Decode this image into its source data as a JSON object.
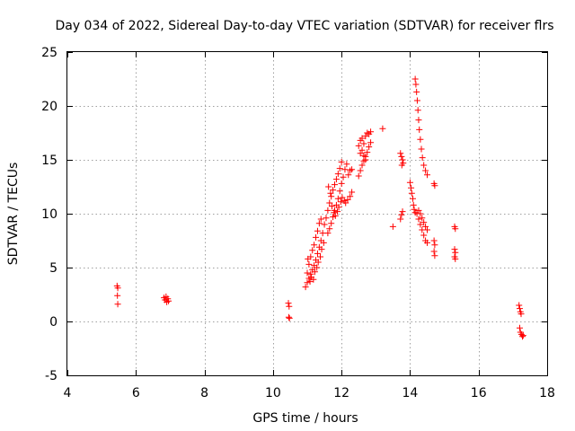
{
  "chart_data": {
    "type": "scatter",
    "title": "Day 034 of 2022, Sidereal Day-to-day VTEC variation (SDTVAR) for receiver flrs",
    "xlabel": "GPS time / hours",
    "ylabel": "SDTVAR / TECUs",
    "xlim": [
      4,
      18
    ],
    "ylim": [
      -5,
      25
    ],
    "xticks": [
      4,
      6,
      8,
      10,
      12,
      14,
      16,
      18
    ],
    "yticks": [
      -5,
      0,
      5,
      10,
      15,
      20,
      25
    ],
    "xtick_labels": [
      "4",
      "6",
      "8",
      "10",
      "12",
      "14",
      "16",
      "18"
    ],
    "ytick_labels": [
      "-5",
      "0",
      "5",
      "10",
      "15",
      "20",
      "25"
    ],
    "grid": true,
    "marker": "+",
    "marker_color": "#ff0000",
    "series": [
      {
        "name": "SDTVAR",
        "points": [
          [
            5.45,
            3.3
          ],
          [
            5.47,
            3.1
          ],
          [
            5.46,
            2.4
          ],
          [
            5.47,
            1.6
          ],
          [
            6.82,
            2.2
          ],
          [
            6.85,
            2.0
          ],
          [
            6.88,
            2.3
          ],
          [
            6.9,
            1.8
          ],
          [
            6.93,
            2.1
          ],
          [
            6.95,
            1.9
          ],
          [
            10.45,
            1.7
          ],
          [
            10.47,
            1.4
          ],
          [
            10.46,
            0.4
          ],
          [
            10.48,
            0.3
          ],
          [
            10.95,
            3.2
          ],
          [
            11.0,
            3.6
          ],
          [
            11.05,
            4.0
          ],
          [
            11.1,
            4.4
          ],
          [
            11.15,
            4.8
          ],
          [
            11.2,
            5.2
          ],
          [
            11.25,
            5.7
          ],
          [
            11.3,
            6.3
          ],
          [
            11.35,
            6.9
          ],
          [
            11.4,
            7.5
          ],
          [
            11.45,
            8.2
          ],
          [
            11.5,
            9.0
          ],
          [
            11.55,
            9.6
          ],
          [
            11.0,
            4.5
          ],
          [
            11.05,
            5.3
          ],
          [
            11.1,
            6.0
          ],
          [
            11.15,
            6.6
          ],
          [
            11.2,
            7.1
          ],
          [
            11.25,
            7.8
          ],
          [
            11.3,
            8.4
          ],
          [
            11.35,
            9.1
          ],
          [
            11.4,
            9.5
          ],
          [
            11.02,
            5.8
          ],
          [
            11.08,
            3.7
          ],
          [
            11.12,
            4.1
          ],
          [
            11.18,
            3.9
          ],
          [
            11.22,
            4.6
          ],
          [
            11.28,
            5.0
          ],
          [
            11.32,
            5.5
          ],
          [
            11.38,
            6.0
          ],
          [
            11.42,
            6.7
          ],
          [
            11.48,
            7.3
          ],
          [
            11.6,
            8.2
          ],
          [
            11.65,
            8.6
          ],
          [
            11.7,
            9.1
          ],
          [
            11.75,
            9.7
          ],
          [
            11.8,
            10.3
          ],
          [
            11.85,
            10.8
          ],
          [
            11.9,
            11.4
          ],
          [
            11.95,
            12.1
          ],
          [
            12.0,
            12.8
          ],
          [
            12.05,
            13.4
          ],
          [
            12.1,
            14.1
          ],
          [
            12.15,
            14.6
          ],
          [
            11.6,
            10.3
          ],
          [
            11.65,
            11.0
          ],
          [
            11.7,
            11.6
          ],
          [
            11.75,
            12.2
          ],
          [
            11.8,
            12.7
          ],
          [
            11.85,
            13.2
          ],
          [
            11.9,
            13.7
          ],
          [
            11.95,
            14.2
          ],
          [
            12.0,
            14.8
          ],
          [
            11.62,
            12.5
          ],
          [
            11.68,
            11.9
          ],
          [
            11.72,
            10.7
          ],
          [
            11.78,
            10.1
          ],
          [
            11.82,
            9.8
          ],
          [
            11.88,
            10.2
          ],
          [
            11.92,
            10.6
          ],
          [
            11.98,
            11.1
          ],
          [
            12.02,
            11.5
          ],
          [
            12.08,
            11.2
          ],
          [
            12.12,
            11.0
          ],
          [
            12.18,
            11.3
          ],
          [
            12.25,
            11.6
          ],
          [
            12.3,
            12.0
          ],
          [
            12.2,
            13.6
          ],
          [
            12.25,
            14.0
          ],
          [
            12.3,
            14.1
          ],
          [
            12.5,
            13.5
          ],
          [
            12.55,
            14.0
          ],
          [
            12.6,
            14.5
          ],
          [
            12.65,
            14.9
          ],
          [
            12.7,
            15.3
          ],
          [
            12.75,
            15.7
          ],
          [
            12.8,
            16.2
          ],
          [
            12.85,
            16.6
          ],
          [
            12.5,
            16.3
          ],
          [
            12.55,
            16.8
          ],
          [
            12.6,
            17.0
          ],
          [
            12.65,
            16.5
          ],
          [
            12.7,
            17.2
          ],
          [
            12.75,
            17.5
          ],
          [
            12.8,
            17.4
          ],
          [
            12.85,
            17.6
          ],
          [
            12.55,
            15.6
          ],
          [
            12.6,
            15.9
          ],
          [
            12.65,
            15.4
          ],
          [
            12.7,
            15.0
          ],
          [
            13.2,
            17.9
          ],
          [
            13.5,
            8.8
          ],
          [
            13.72,
            9.5
          ],
          [
            13.75,
            9.9
          ],
          [
            13.78,
            10.2
          ],
          [
            13.72,
            15.6
          ],
          [
            13.75,
            15.3
          ],
          [
            13.78,
            15.0
          ],
          [
            13.8,
            14.7
          ],
          [
            13.76,
            14.5
          ],
          [
            14.0,
            12.9
          ],
          [
            14.03,
            12.4
          ],
          [
            14.05,
            11.9
          ],
          [
            14.08,
            11.4
          ],
          [
            14.1,
            10.8
          ],
          [
            14.12,
            10.4
          ],
          [
            14.15,
            22.5
          ],
          [
            14.17,
            22.0
          ],
          [
            14.19,
            21.3
          ],
          [
            14.21,
            20.5
          ],
          [
            14.23,
            19.6
          ],
          [
            14.25,
            18.7
          ],
          [
            14.27,
            17.8
          ],
          [
            14.3,
            16.9
          ],
          [
            14.33,
            16.0
          ],
          [
            14.36,
            15.2
          ],
          [
            14.4,
            14.5
          ],
          [
            14.45,
            14.0
          ],
          [
            14.5,
            13.6
          ],
          [
            14.15,
            10.1
          ],
          [
            14.2,
            10.0
          ],
          [
            14.25,
            9.5
          ],
          [
            14.3,
            9.0
          ],
          [
            14.35,
            8.5
          ],
          [
            14.4,
            8.0
          ],
          [
            14.45,
            7.5
          ],
          [
            14.5,
            7.3
          ],
          [
            14.25,
            10.3
          ],
          [
            14.3,
            10.0
          ],
          [
            14.35,
            9.6
          ],
          [
            14.4,
            9.2
          ],
          [
            14.45,
            8.8
          ],
          [
            14.5,
            8.5
          ],
          [
            14.7,
            12.8
          ],
          [
            14.72,
            12.6
          ],
          [
            14.7,
            7.5
          ],
          [
            14.72,
            7.1
          ],
          [
            14.7,
            6.5
          ],
          [
            14.72,
            6.1
          ],
          [
            15.3,
            8.8
          ],
          [
            15.32,
            8.6
          ],
          [
            15.3,
            6.7
          ],
          [
            15.32,
            6.4
          ],
          [
            15.3,
            6.0
          ],
          [
            15.32,
            5.8
          ],
          [
            17.18,
            1.5
          ],
          [
            17.2,
            1.2
          ],
          [
            17.22,
            0.9
          ],
          [
            17.24,
            0.7
          ],
          [
            17.2,
            -0.6
          ],
          [
            17.22,
            -1.0
          ],
          [
            17.25,
            -1.2
          ],
          [
            17.28,
            -1.4
          ],
          [
            17.3,
            -1.3
          ]
        ]
      }
    ]
  }
}
